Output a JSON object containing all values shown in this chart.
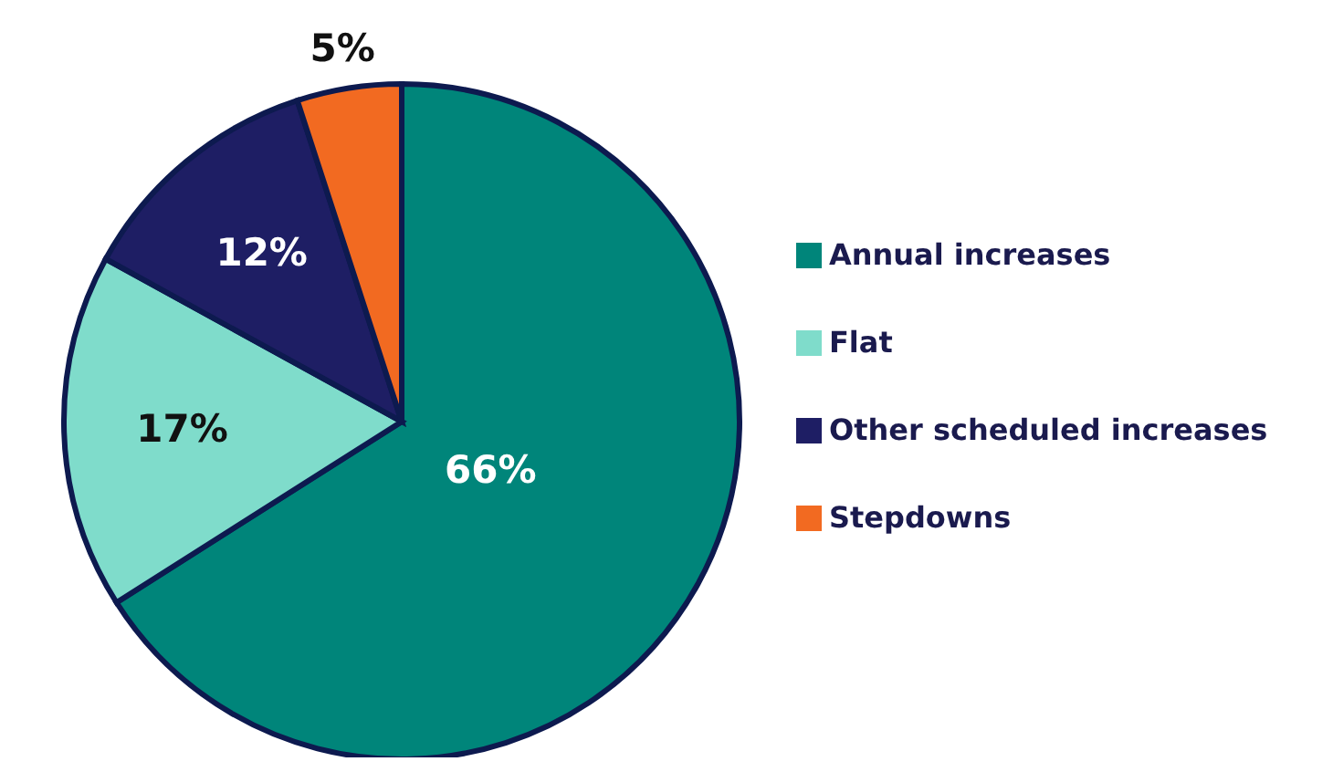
{
  "chart_data": {
    "type": "pie",
    "categories": [
      "Annual increases",
      "Flat",
      "Other scheduled increases",
      "Stepdowns"
    ],
    "values": [
      66,
      17,
      12,
      5
    ],
    "colors": [
      "#00857a",
      "#7fdccb",
      "#1e1e64",
      "#f26a21"
    ],
    "value_labels": [
      "66%",
      "17%",
      "12%",
      "5%"
    ],
    "legend": "right"
  }
}
